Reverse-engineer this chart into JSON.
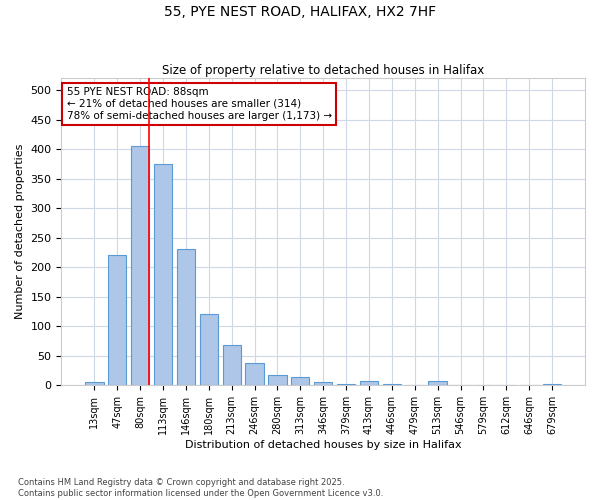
{
  "title": "55, PYE NEST ROAD, HALIFAX, HX2 7HF",
  "subtitle": "Size of property relative to detached houses in Halifax",
  "xlabel": "Distribution of detached houses by size in Halifax",
  "ylabel": "Number of detached properties",
  "categories": [
    "13sqm",
    "47sqm",
    "80sqm",
    "113sqm",
    "146sqm",
    "180sqm",
    "213sqm",
    "246sqm",
    "280sqm",
    "313sqm",
    "346sqm",
    "379sqm",
    "413sqm",
    "446sqm",
    "479sqm",
    "513sqm",
    "546sqm",
    "579sqm",
    "612sqm",
    "646sqm",
    "679sqm"
  ],
  "values": [
    5,
    220,
    405,
    375,
    230,
    120,
    68,
    38,
    17,
    14,
    5,
    3,
    7,
    2,
    0,
    7,
    1,
    0,
    0,
    0,
    3
  ],
  "bar_color": "#aec6e8",
  "bar_edge_color": "#5b9bd5",
  "grid_color": "#d0d8e8",
  "red_line_index": 2,
  "annotation_text": "55 PYE NEST ROAD: 88sqm\n← 21% of detached houses are smaller (314)\n78% of semi-detached houses are larger (1,173) →",
  "annotation_box_color": "#cc0000",
  "footer": "Contains HM Land Registry data © Crown copyright and database right 2025.\nContains public sector information licensed under the Open Government Licence v3.0.",
  "ylim": [
    0,
    520
  ],
  "figsize": [
    6.0,
    5.0
  ],
  "dpi": 100
}
